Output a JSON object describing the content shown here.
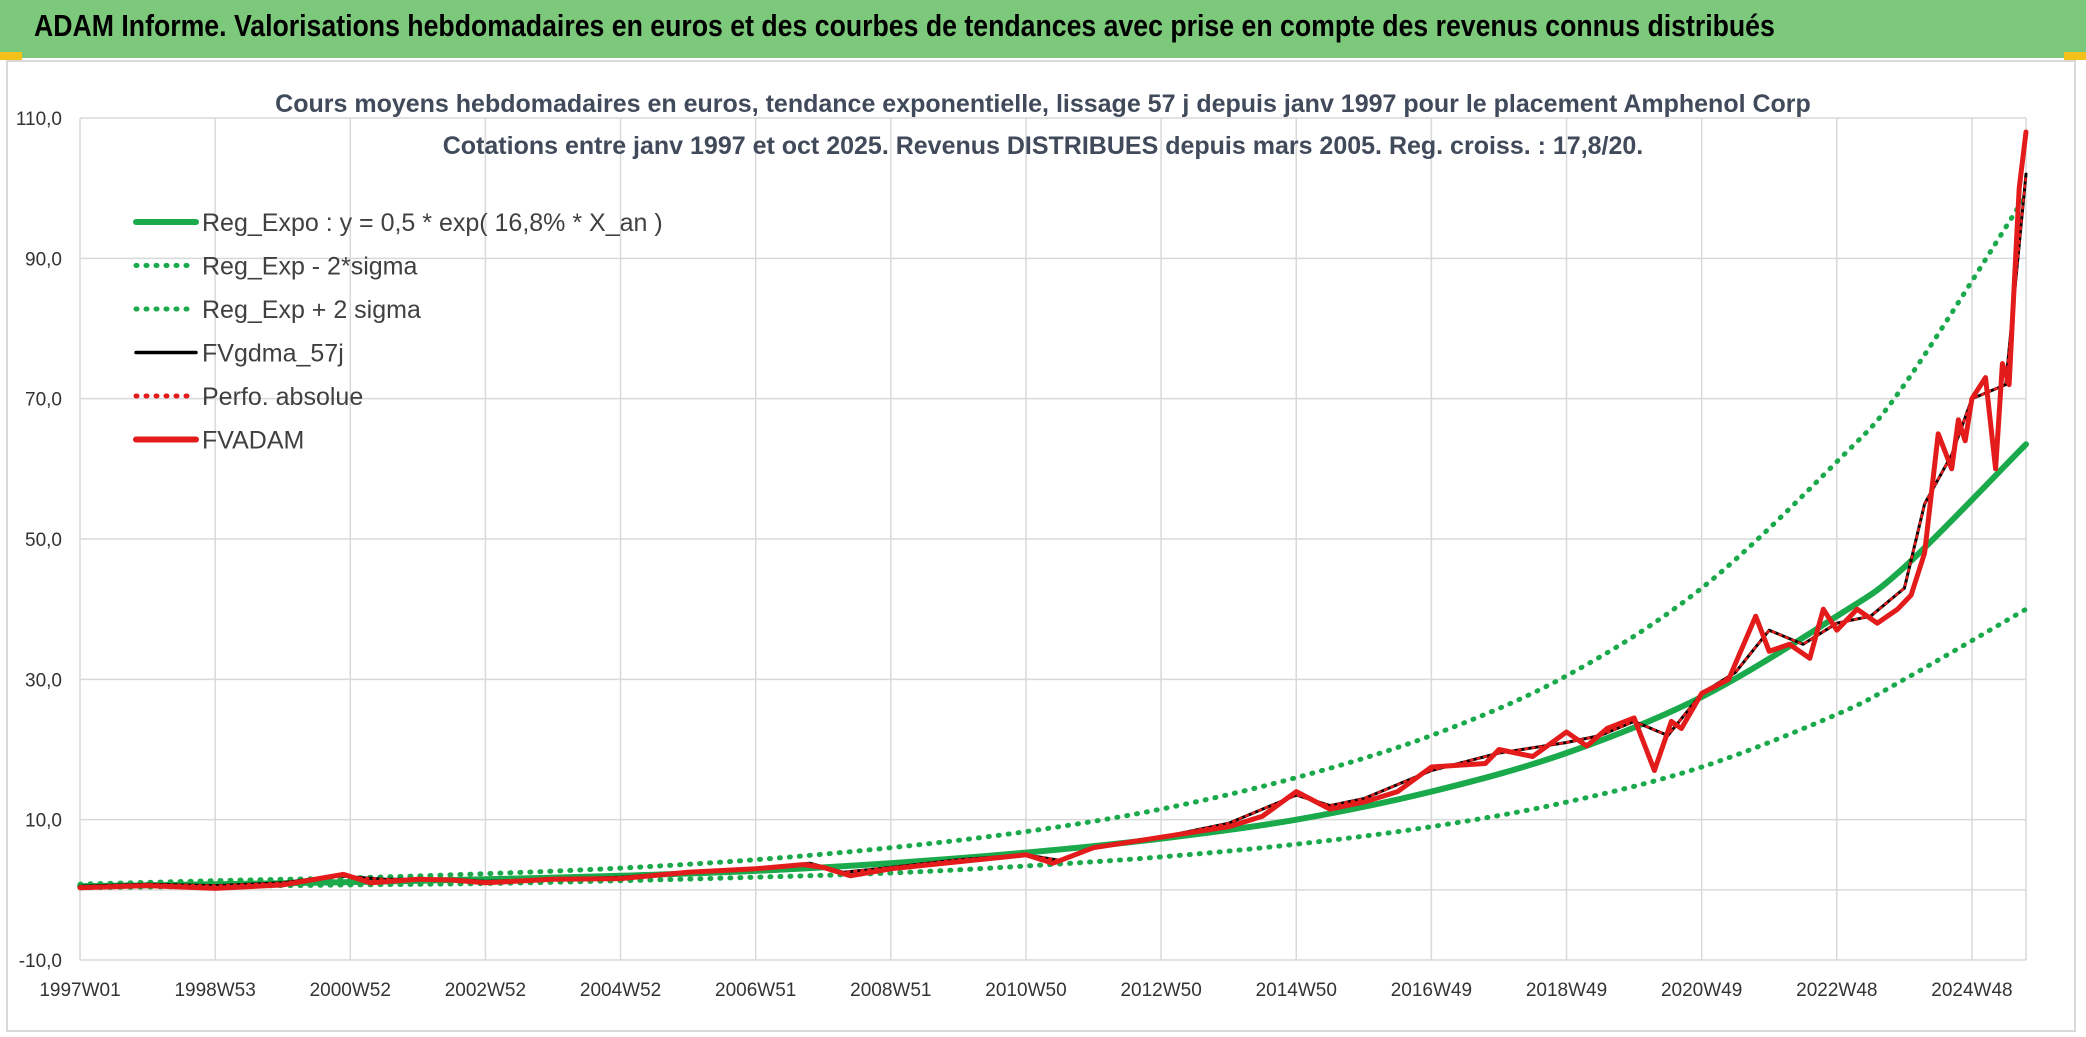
{
  "header": {
    "title": "ADAM Informe. Valorisations hebdomadaires en euros et des courbes de tendances avec prise en compte des revenus connus distribués"
  },
  "colors": {
    "banner": "#7dc97b",
    "trend": "#1aa94b",
    "band": "#1aa94b",
    "gdma": "#000000",
    "perfo": "#e31b1b",
    "fvadam": "#e31b1b",
    "grid": "#d9d9d9"
  },
  "chart_data": {
    "type": "line",
    "title": "Cours moyens hebdomadaires en euros, tendance exponentielle, lissage 57 j depuis janv 1997 pour le placement Amphenol Corp",
    "subtitle": "Cotations entre janv 1997 et oct 2025. Revenus DISTRIBUES depuis mars 2005. Reg. croiss. : 17,8/20.",
    "xlabel": "",
    "ylabel": "",
    "x_range": [
      1997.0,
      2025.8
    ],
    "ylim": [
      -10,
      110
    ],
    "y_ticks": [
      "110,0",
      "90,0",
      "70,0",
      "50,0",
      "30,0",
      "10,0",
      "-10,0"
    ],
    "y_tick_values": [
      110,
      90,
      70,
      50,
      30,
      10,
      -10
    ],
    "x_ticks": [
      "1997W01",
      "1998W53",
      "2000W52",
      "2002W52",
      "2004W52",
      "2006W51",
      "2008W51",
      "2010W50",
      "2012W50",
      "2014W50",
      "2016W49",
      "2018W49",
      "2020W49",
      "2022W48",
      "2024W48"
    ],
    "x_tick_values": [
      1997.0,
      1999.0,
      2001.0,
      2003.0,
      2005.0,
      2007.0,
      2009.0,
      2011.0,
      2013.0,
      2015.0,
      2017.0,
      2019.0,
      2021.0,
      2023.0,
      2025.0
    ],
    "legend": [
      {
        "label": "Reg_Expo : y = 0,5 * exp( 16,8% *  X_an )",
        "style": "solid-thick",
        "color": "#1aa94b"
      },
      {
        "label": "Reg_Exp - 2*sigma",
        "style": "dotted",
        "color": "#1aa94b"
      },
      {
        "label": "Reg_Exp + 2 sigma",
        "style": "dotted",
        "color": "#1aa94b"
      },
      {
        "label": "FVgdma_57j",
        "style": "solid",
        "color": "#000000"
      },
      {
        "label": "Perfo. absolue",
        "style": "dotted",
        "color": "#e31b1b"
      },
      {
        "label": "FVADAM",
        "style": "solid-thick",
        "color": "#e31b1b"
      }
    ],
    "series": [
      {
        "name": "Reg_Expo",
        "style": "solid-thick",
        "x": [
          1997,
          1999,
          2001,
          2003,
          2005,
          2007,
          2009,
          2011,
          2013,
          2015,
          2017,
          2019,
          2021,
          2023,
          2024,
          2025.8
        ],
        "y": [
          0.5,
          0.8,
          1.1,
          1.5,
          2.0,
          2.7,
          3.8,
          5.3,
          7.3,
          10.0,
          14.0,
          19.5,
          27.5,
          39.0,
          46.0,
          63.5
        ]
      },
      {
        "name": "Reg_Exp - 2*sigma",
        "style": "dotted",
        "x": [
          1997,
          1999,
          2001,
          2003,
          2005,
          2007,
          2009,
          2011,
          2013,
          2015,
          2017,
          2019,
          2021,
          2023,
          2024,
          2025.8
        ],
        "y": [
          0.3,
          0.5,
          0.7,
          0.9,
          1.3,
          1.8,
          2.4,
          3.4,
          4.7,
          6.5,
          9.0,
          12.5,
          17.5,
          25.0,
          30.0,
          40.0
        ]
      },
      {
        "name": "Reg_Exp + 2 sigma",
        "style": "dotted",
        "x": [
          1997,
          1999,
          2001,
          2003,
          2005,
          2007,
          2009,
          2011,
          2013,
          2015,
          2017,
          2019,
          2021,
          2023,
          2024,
          2025.8
        ],
        "y": [
          0.8,
          1.3,
          1.7,
          2.3,
          3.1,
          4.3,
          6.0,
          8.3,
          11.5,
          16.0,
          22.0,
          30.5,
          43.0,
          61.0,
          72.0,
          99.0
        ]
      },
      {
        "name": "FVgdma_57j",
        "style": "solid",
        "x": [
          1997,
          1998,
          1999,
          2000,
          2000.8,
          2001.5,
          2002.5,
          2003,
          2004,
          2005,
          2006,
          2007,
          2007.8,
          2008.3,
          2009,
          2010,
          2011,
          2011.5,
          2012,
          2013,
          2014,
          2015,
          2015.5,
          2016,
          2017,
          2018,
          2019,
          2019.5,
          2020,
          2020.5,
          2021,
          2021.5,
          2022,
          2022.5,
          2023,
          2023.5,
          2024,
          2024.3,
          2024.7,
          2025,
          2025.5,
          2025.8
        ],
        "y": [
          0.5,
          0.8,
          0.6,
          1.0,
          2.0,
          1.5,
          1.5,
          1.2,
          1.5,
          1.8,
          2.5,
          3.0,
          3.8,
          2.5,
          3.2,
          4.3,
          5.0,
          4.2,
          6.0,
          7.5,
          9.5,
          13.5,
          12.0,
          13.0,
          17.0,
          19.5,
          21.0,
          22.0,
          24.0,
          22.0,
          28.0,
          31.0,
          37.0,
          35.0,
          38.0,
          39.0,
          43.0,
          55.0,
          62.0,
          70.0,
          72.0,
          102.0
        ]
      },
      {
        "name": "Perfo. absolue",
        "style": "dotted",
        "x": [
          1997,
          1998,
          1999,
          2000,
          2000.8,
          2001.5,
          2002.5,
          2003,
          2004,
          2005,
          2006,
          2007,
          2007.8,
          2008.3,
          2009,
          2010,
          2011,
          2011.5,
          2012,
          2013,
          2014,
          2015,
          2015.5,
          2016,
          2017,
          2018,
          2019,
          2019.5,
          2020,
          2020.5,
          2021,
          2021.5,
          2022,
          2022.5,
          2023,
          2023.5,
          2024,
          2024.3,
          2024.7,
          2025,
          2025.5,
          2025.8
        ],
        "y": [
          0.5,
          0.8,
          0.6,
          1.0,
          2.0,
          1.5,
          1.5,
          1.2,
          1.5,
          1.8,
          2.5,
          3.0,
          3.8,
          2.5,
          3.2,
          4.3,
          5.0,
          4.2,
          6.0,
          7.5,
          9.5,
          13.5,
          12.0,
          13.0,
          17.0,
          19.5,
          21.0,
          22.0,
          24.0,
          22.0,
          28.0,
          31.0,
          37.0,
          35.0,
          38.0,
          39.0,
          43.0,
          55.0,
          62.0,
          70.0,
          72.0,
          102.0
        ]
      },
      {
        "name": "FVADAM",
        "style": "solid-thick",
        "x": [
          1997,
          1998,
          1999,
          2000,
          2000.9,
          2001.3,
          2002,
          2002.5,
          2003,
          2004,
          2005,
          2006,
          2007,
          2007.7,
          2008.0,
          2008.4,
          2009,
          2010,
          2011,
          2011.4,
          2012,
          2013,
          2014,
          2014.5,
          2015.0,
          2015.5,
          2016,
          2016.5,
          2017,
          2017.8,
          2018,
          2018.5,
          2019,
          2019.3,
          2019.6,
          2020.0,
          2020.3,
          2020.55,
          2020.7,
          2021,
          2021.4,
          2021.8,
          2022.0,
          2022.3,
          2022.6,
          2022.8,
          2023.0,
          2023.3,
          2023.6,
          2023.9,
          2024.1,
          2024.3,
          2024.5,
          2024.7,
          2024.8,
          2024.9,
          2025.0,
          2025.2,
          2025.35,
          2025.45,
          2025.55,
          2025.7,
          2025.8
        ],
        "y": [
          0.3,
          0.6,
          0.2,
          0.7,
          2.2,
          1.0,
          1.5,
          1.4,
          1.0,
          1.5,
          1.6,
          2.5,
          3.0,
          3.6,
          3.2,
          2.0,
          3.0,
          4.0,
          5.0,
          3.8,
          6.0,
          7.5,
          9.0,
          10.5,
          14.0,
          11.5,
          12.5,
          14.0,
          17.5,
          18.0,
          20.0,
          19.0,
          22.5,
          20.5,
          23.0,
          24.5,
          17.0,
          24.0,
          23.0,
          28.0,
          30.0,
          39.0,
          34.0,
          35.0,
          33.0,
          40.0,
          37.0,
          40.0,
          38.0,
          40.0,
          42.0,
          48.0,
          65.0,
          60.0,
          67.0,
          64.0,
          70.0,
          73.0,
          60.0,
          75.0,
          72.0,
          100.0,
          108.0
        ]
      }
    ]
  }
}
